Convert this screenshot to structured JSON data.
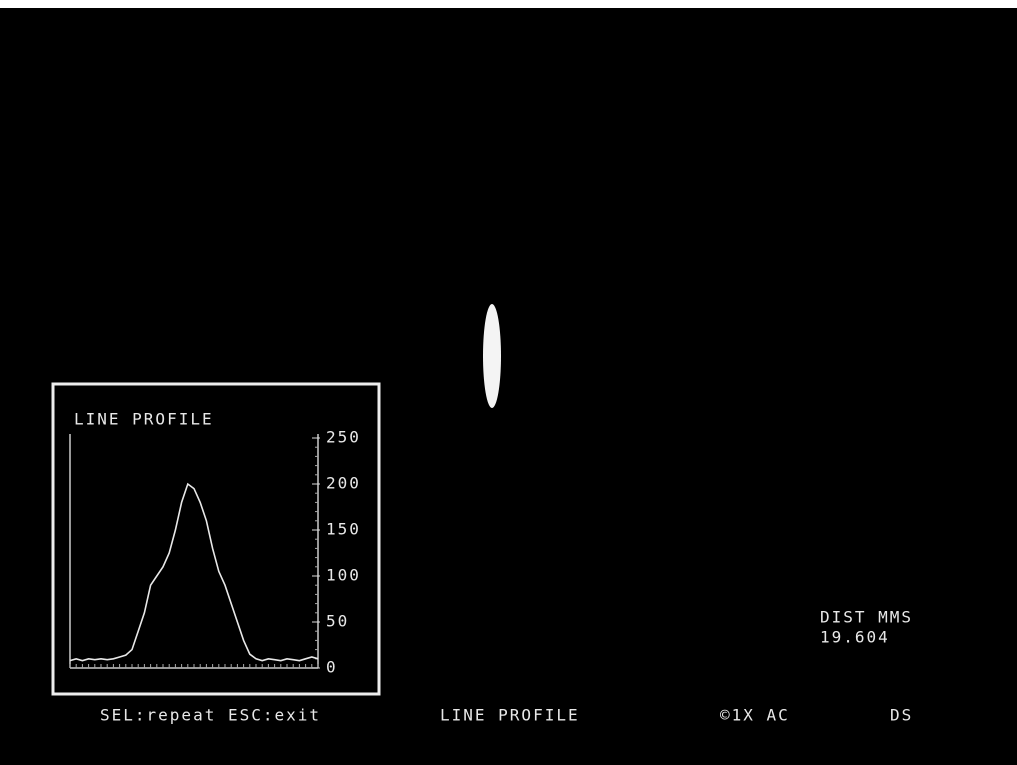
{
  "chart_data": {
    "type": "line",
    "title": "LINE PROFILE",
    "x": [
      0,
      1,
      2,
      3,
      4,
      5,
      6,
      7,
      8,
      9,
      10,
      11,
      12,
      13,
      14,
      15,
      16,
      17,
      18,
      19,
      20,
      21,
      22,
      23,
      24,
      25,
      26,
      27,
      28,
      29,
      30,
      31,
      32,
      33,
      34,
      35,
      36,
      37,
      38,
      39,
      40
    ],
    "values": [
      8,
      10,
      8,
      10,
      9,
      10,
      9,
      10,
      12,
      14,
      20,
      40,
      60,
      90,
      100,
      110,
      125,
      150,
      180,
      200,
      195,
      180,
      160,
      130,
      105,
      90,
      70,
      50,
      30,
      15,
      10,
      8,
      10,
      9,
      8,
      10,
      9,
      8,
      10,
      12,
      10
    ],
    "color": "#e8e8e8",
    "xlim": [
      0,
      40
    ],
    "ylim": [
      0,
      250
    ],
    "yticks": [
      0,
      50,
      100,
      150,
      200,
      250
    ]
  },
  "readout": {
    "label": "DIST MMS",
    "value": "19.604"
  },
  "status_bar": {
    "hint": "SEL:repeat ESC:exit",
    "mode": "LINE PROFILE",
    "zoom": "©1X AC",
    "flag": "DS"
  }
}
